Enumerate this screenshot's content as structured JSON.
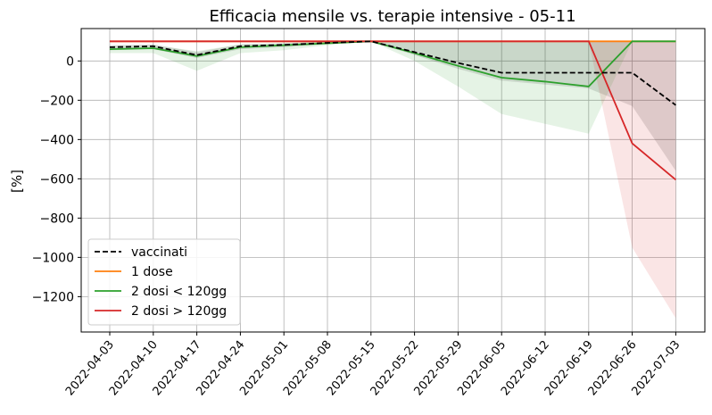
{
  "chart_data": {
    "type": "line",
    "title": "Efficacia mensile vs. terapie intensive - 05-11",
    "xlabel": "",
    "ylabel": "[%]",
    "x": [
      "2022-04-03",
      "2022-04-10",
      "2022-04-17",
      "2022-04-24",
      "2022-05-01",
      "2022-05-08",
      "2022-05-15",
      "2022-05-22",
      "2022-05-29",
      "2022-06-05",
      "2022-06-12",
      "2022-06-19",
      "2022-06-26",
      "2022-07-03"
    ],
    "ylim": [
      -1380,
      165
    ],
    "yticks": [
      0,
      -200,
      -400,
      -600,
      -800,
      -1000,
      -1200
    ],
    "ytick_labels": [
      "0",
      "−200",
      "−400",
      "−600",
      "−800",
      "−1000",
      "−1200"
    ],
    "grid": true,
    "legend_position": "lower-left",
    "series": [
      {
        "name": "vaccinati",
        "color": "#000000",
        "dashed": true,
        "values": [
          70,
          75,
          30,
          75,
          82,
          92,
          100,
          45,
          -10,
          -60,
          -60,
          -60,
          -60,
          -225
        ],
        "band_low": [
          55,
          60,
          15,
          60,
          70,
          85,
          100,
          30,
          -40,
          -100,
          -120,
          -140,
          -230,
          -560
        ],
        "band_high": [
          80,
          85,
          45,
          85,
          90,
          98,
          100,
          100,
          100,
          100,
          100,
          100,
          100,
          100
        ]
      },
      {
        "name": "1 dose",
        "color": "#ff7f0e",
        "dashed": false,
        "values": [
          100,
          100,
          100,
          100,
          100,
          100,
          100,
          100,
          100,
          100,
          100,
          100,
          100,
          100
        ],
        "band_low": [
          95,
          95,
          95,
          95,
          95,
          95,
          100,
          100,
          100,
          100,
          100,
          100,
          100,
          100
        ],
        "band_high": [
          100,
          100,
          100,
          100,
          100,
          100,
          100,
          100,
          100,
          100,
          100,
          100,
          100,
          100
        ]
      },
      {
        "name": "2 dosi < 120gg",
        "color": "#2ca02c",
        "dashed": false,
        "values": [
          60,
          65,
          25,
          70,
          80,
          90,
          100,
          40,
          -25,
          -85,
          -105,
          -130,
          100,
          100
        ],
        "band_low": [
          40,
          40,
          -50,
          40,
          55,
          80,
          100,
          0,
          -130,
          -270,
          -320,
          -370,
          100,
          100
        ],
        "band_high": [
          75,
          80,
          50,
          85,
          90,
          98,
          100,
          100,
          100,
          100,
          100,
          100,
          100,
          100
        ]
      },
      {
        "name": "2 dosi > 120gg",
        "color": "#d62728",
        "dashed": false,
        "values": [
          100,
          100,
          100,
          100,
          100,
          100,
          100,
          100,
          100,
          100,
          100,
          100,
          -420,
          -605
        ],
        "band_low": [
          100,
          100,
          100,
          100,
          100,
          100,
          100,
          100,
          100,
          100,
          100,
          100,
          -950,
          -1310
        ],
        "band_high": [
          100,
          100,
          100,
          100,
          100,
          100,
          100,
          100,
          100,
          100,
          100,
          100,
          100,
          100
        ]
      }
    ]
  }
}
